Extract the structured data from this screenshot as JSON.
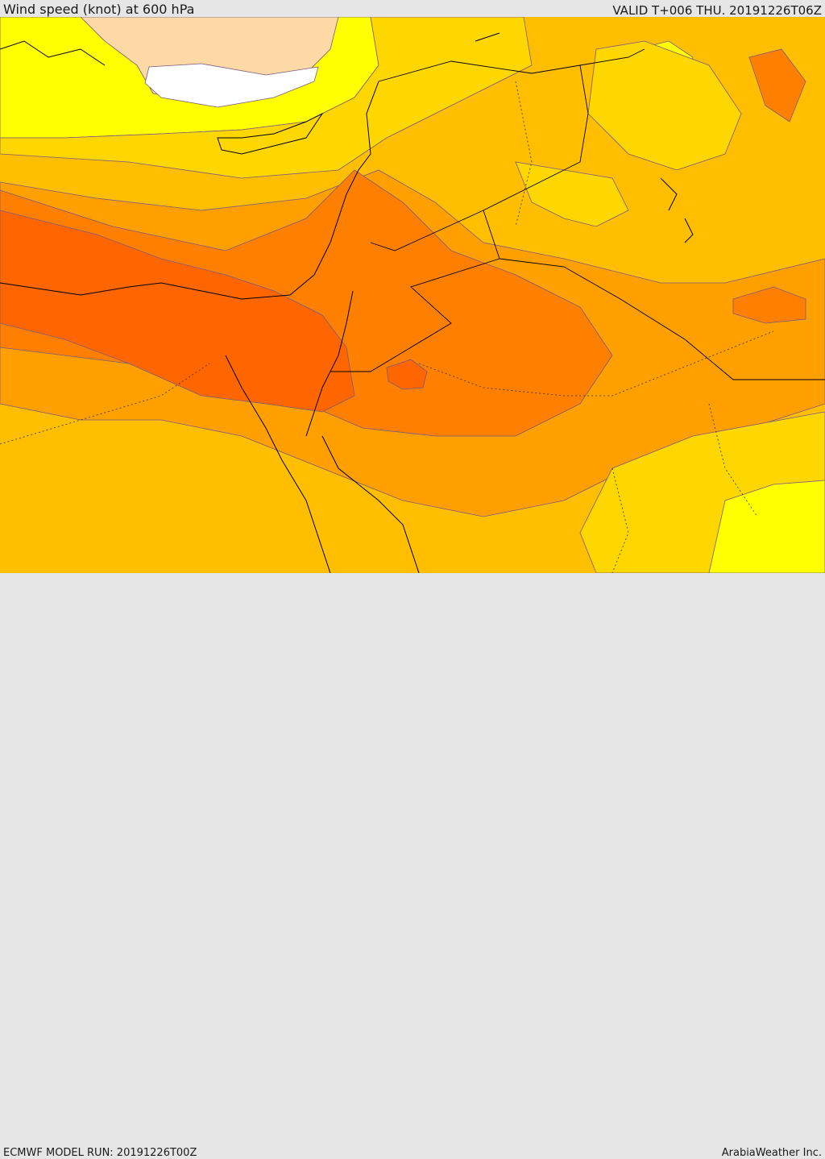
{
  "header": {
    "title": "Wind speed (knot) at 600 hPa",
    "valid": "VALID T+006 THU. 20191226T06Z"
  },
  "footer": {
    "model_run": "ECMWF MODEL RUN: 20191226T00Z",
    "credit": "ArabiaWeather Inc."
  },
  "colors": {
    "background": "#e6e6e6",
    "calm_white": "#ffffff",
    "peach": "#fdd9a5",
    "yellow": "#ffff00",
    "gold": "#ffd700",
    "amber": "#ffbe00",
    "orange": "#ffa000",
    "dark_orange": "#ff8000",
    "red_orange": "#ff6600",
    "contour": "#7a5a80",
    "coastline": "#000000"
  }
}
